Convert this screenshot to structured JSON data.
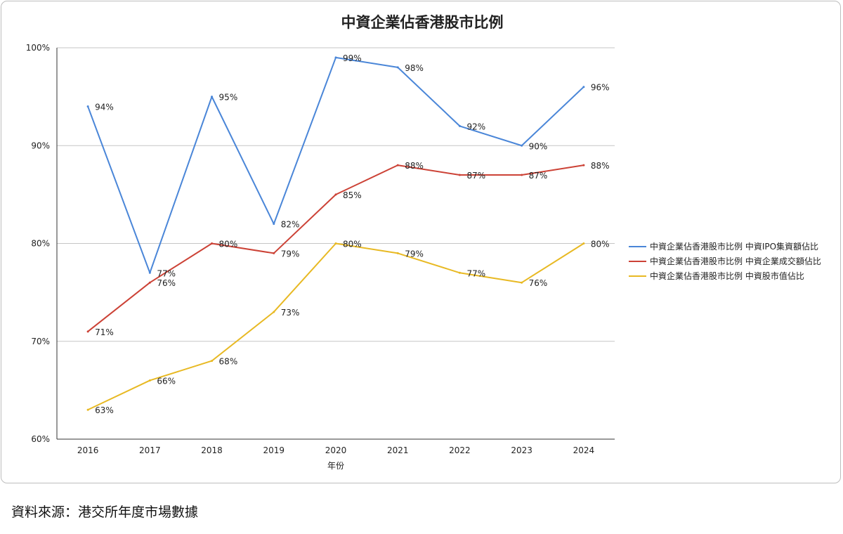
{
  "chart_data": {
    "type": "line",
    "title": "中資企業佔香港股市比例",
    "xlabel": "年份",
    "ylabel": "",
    "categories": [
      "2016",
      "2017",
      "2018",
      "2019",
      "2020",
      "2021",
      "2022",
      "2023",
      "2024"
    ],
    "ylim": [
      60,
      100
    ],
    "yticks": [
      "60%",
      "70%",
      "80%",
      "90%",
      "100%"
    ],
    "grid": true,
    "legend_position": "right",
    "series": [
      {
        "name": "中資企業佔香港股市比例  中資IPO集資額佔比",
        "color": "#4a86d8",
        "values": [
          94,
          77,
          95,
          82,
          99,
          98,
          92,
          90,
          96
        ],
        "labels": [
          "94%",
          "77%",
          "95%",
          "82%",
          "99%",
          "98%",
          "92%",
          "90%",
          "96%"
        ]
      },
      {
        "name": "中資企業佔香港股市比例  中資企業成交額佔比",
        "color": "#cc4236",
        "values": [
          71,
          76,
          80,
          79,
          85,
          88,
          87,
          87,
          88
        ],
        "labels": [
          "71%",
          "76%",
          "80%",
          "79%",
          "85%",
          "88%",
          "87%",
          "87%",
          "88%"
        ]
      },
      {
        "name": "中資企業佔香港股市比例  中資股市值佔比",
        "color": "#e8b923",
        "values": [
          63,
          66,
          68,
          73,
          80,
          79,
          77,
          76,
          80
        ],
        "labels": [
          "63%",
          "66%",
          "68%",
          "73%",
          "80%",
          "79%",
          "77%",
          "76%",
          "80%"
        ]
      }
    ]
  },
  "footer": {
    "source": "資料來源：港交所年度市場數據"
  }
}
